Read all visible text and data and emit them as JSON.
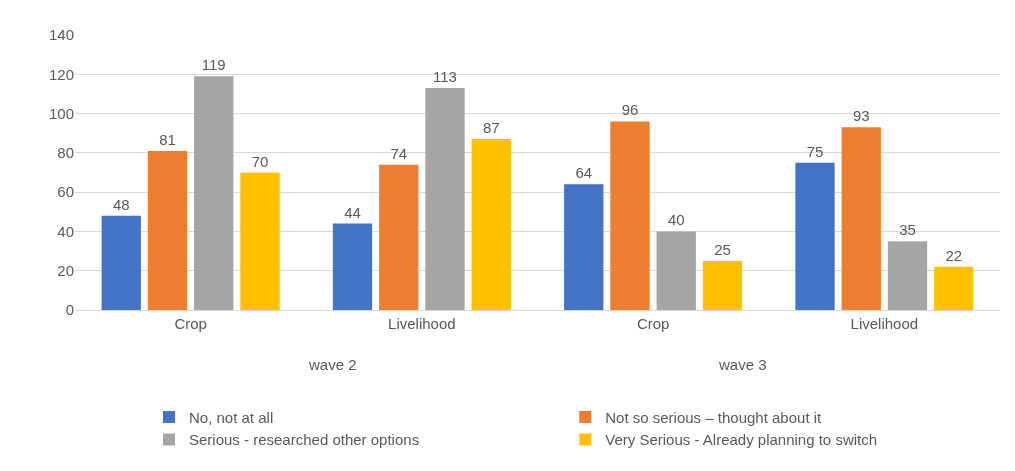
{
  "chart_data": {
    "type": "bar",
    "categories": [
      "Crop",
      "Livelihood",
      "Crop",
      "Livelihood"
    ],
    "series": [
      {
        "name": "No, not at all",
        "color": "#4472c4",
        "values": [
          48,
          44,
          64,
          75
        ]
      },
      {
        "name": "Not so serious – thought about it",
        "color": "#ed7d31",
        "values": [
          81,
          74,
          96,
          93
        ]
      },
      {
        "name": "Serious - researched other options",
        "color": "#a5a5a5",
        "values": [
          119,
          113,
          40,
          35
        ]
      },
      {
        "name": "Very Serious - Already planning to switch",
        "color": "#ffc000",
        "values": [
          70,
          87,
          25,
          22
        ]
      }
    ],
    "ylim": [
      0,
      140
    ],
    "yticks": [
      0,
      20,
      40,
      60,
      80,
      100,
      120,
      140
    ],
    "grid": "y",
    "legend": "bottom",
    "data_labels": true,
    "annotations": [
      "wave 2",
      "wave 3"
    ]
  }
}
